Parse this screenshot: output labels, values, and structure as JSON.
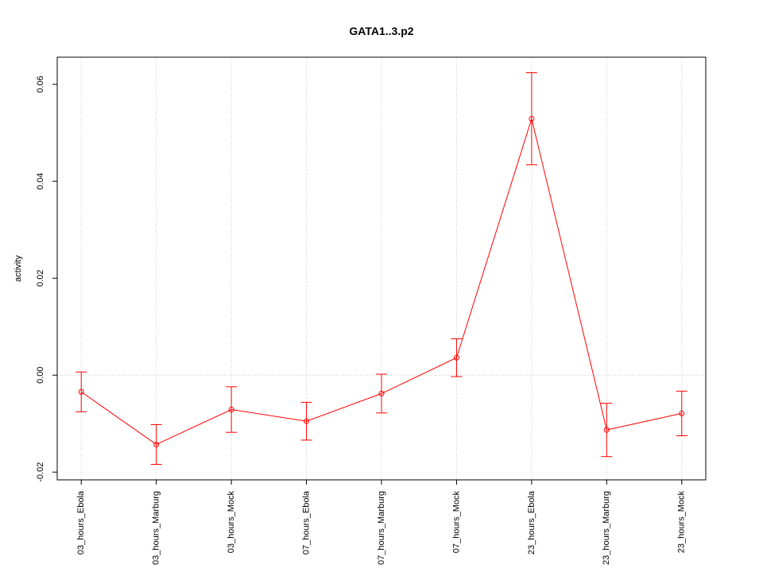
{
  "chart_data": {
    "type": "line",
    "title": "GATA1..3.p2",
    "y_label": "activity",
    "categories": [
      "03_hours_Ebola",
      "03_hours_Marburg",
      "03_hours_Mock",
      "07_hours_Ebola",
      "07_hours_Marburg",
      "07_hours_Mock",
      "23_hours_Ebola",
      "23_hours_Marburg",
      "23_hours_Mock"
    ],
    "series": [
      {
        "name": "activity",
        "color": "#ff0000",
        "values": [
          -0.00345,
          -0.0143,
          -0.0071,
          -0.0095,
          -0.0038,
          0.0036,
          0.0529,
          -0.0113,
          -0.0079
        ],
        "errors": [
          0.0041,
          0.0041,
          0.0047,
          0.0039,
          0.004,
          0.0039,
          0.0095,
          0.0055,
          0.0046
        ]
      }
    ],
    "ylim": [
      -0.0216,
      0.0656
    ],
    "yticks": [
      -0.02,
      {
        "value": 0,
        "label": "0.00"
      },
      0.02,
      0.04,
      0.06
    ],
    "grid": true,
    "hline": 0
  }
}
